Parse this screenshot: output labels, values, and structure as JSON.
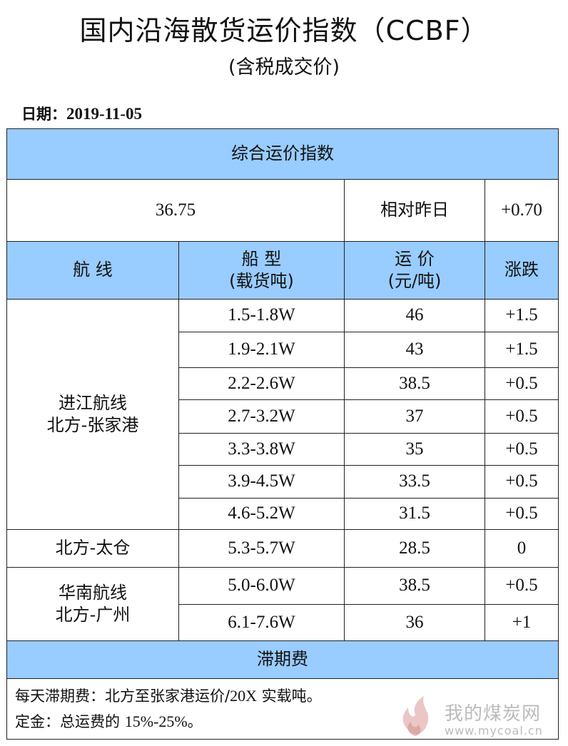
{
  "title": "国内沿海散货运价指数（CCBF）",
  "subtitle": "(含税成交价)",
  "date_label": "日期：",
  "date_value": "2019-11-05",
  "index": {
    "header": "综合运价指数",
    "value": "36.75",
    "compare_label": "相对昨日",
    "change": "+0.70"
  },
  "columns": {
    "route": "航  线",
    "ship_type_1": "船  型",
    "ship_type_2": "(载货吨)",
    "freight_1": "运  价",
    "freight_2": "(元/吨)",
    "change": "涨跌"
  },
  "groups": [
    {
      "route_line1": "进江航线",
      "route_line2": "北方-张家港",
      "rows": [
        {
          "ship": "1.5-1.8W",
          "price": "46",
          "change": "+1.5"
        },
        {
          "ship": "1.9-2.1W",
          "price": "43",
          "change": "+1.5"
        },
        {
          "ship": "2.2-2.6W",
          "price": "38.5",
          "change": "+0.5"
        },
        {
          "ship": "2.7-3.2W",
          "price": "37",
          "change": "+0.5"
        },
        {
          "ship": "3.3-3.8W",
          "price": "35",
          "change": "+0.5"
        },
        {
          "ship": "3.9-4.5W",
          "price": "33.5",
          "change": "+0.5"
        },
        {
          "ship": "4.6-5.2W",
          "price": "31.5",
          "change": "+0.5"
        }
      ]
    },
    {
      "route_line1": "北方-太仓",
      "route_line2": "",
      "rows": [
        {
          "ship": "5.3-5.7W",
          "price": "28.5",
          "change": "0"
        }
      ]
    },
    {
      "route_line1": "华南航线",
      "route_line2": "北方-广州",
      "rows": [
        {
          "ship": "5.0-6.0W",
          "price": "38.5",
          "change": "+0.5"
        },
        {
          "ship": "6.1-7.6W",
          "price": "36",
          "change": "+1"
        }
      ]
    }
  ],
  "demurrage": {
    "header": "滞期费",
    "note1_a": "每天滞期费：北方至张家港运价/",
    "note1_b": "20X",
    "note1_c": " 实载吨。",
    "note2_a": "定金：总运费的 ",
    "note2_b": "15%-25%",
    "note2_c": "。"
  },
  "watermark": {
    "brand": "我的煤炭网",
    "url": "www.mycoal.cn"
  }
}
